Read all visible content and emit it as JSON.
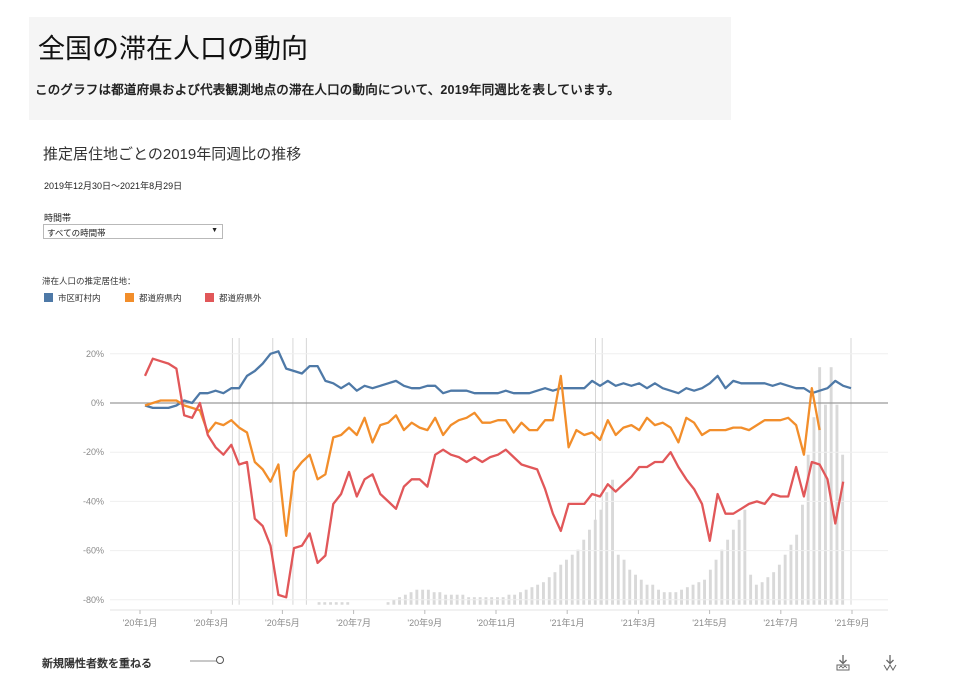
{
  "header": {
    "title": "全国の滞在人口の動向",
    "description": "このグラフは都道府県および代表観測地点の滞在人口の動向について、2019年同週比を表しています。"
  },
  "chart_section": {
    "title": "推定居住地ごとの2019年同週比の推移",
    "date_range": "2019年12月30日～2021年8月29日"
  },
  "filter": {
    "label": "時間帯",
    "selected": "すべての時間帯"
  },
  "legend": {
    "title": "滞在人口の推定居住地：",
    "items": [
      {
        "label": "市区町村内",
        "color": "#4e79a7"
      },
      {
        "label": "都道府県内",
        "color": "#f28e2b"
      },
      {
        "label": "都道府県外",
        "color": "#e15759"
      }
    ]
  },
  "controls": {
    "overlay_label": "新規陽性者数を重ねる",
    "overlay_enabled": true,
    "download_icons": [
      "download-icon",
      "download-icon"
    ]
  },
  "chart_data": {
    "type": "line",
    "x_tick_labels": [
      "'20年1月",
      "'20年3月",
      "'20年5月",
      "'20年7月",
      "'20年9月",
      "'20年11月",
      "'21年1月",
      "'21年3月",
      "'21年5月",
      "'21年7月",
      "'21年9月"
    ],
    "y_tick_labels": [
      "20%",
      "0%",
      "-20%",
      "-40%",
      "-60%",
      "-80%"
    ],
    "ylim": [
      -83,
      24
    ],
    "zero_line": true,
    "series": [
      {
        "name": "市区町村内",
        "color": "#4e79a7",
        "values": [
          -1,
          -2,
          -2,
          -2,
          -1,
          1,
          0,
          4,
          4,
          5,
          4,
          6,
          6,
          11,
          13,
          16,
          20,
          21,
          14,
          13,
          12,
          15,
          15,
          9,
          8,
          6,
          8,
          5,
          7,
          6,
          7,
          8,
          9,
          7,
          6,
          6,
          7,
          7,
          4,
          5,
          5,
          5,
          4,
          4,
          4,
          4,
          5,
          4,
          4,
          4,
          5,
          6,
          5,
          6,
          6,
          6,
          6,
          9,
          7,
          9,
          7,
          8,
          7,
          8,
          6,
          8,
          6,
          5,
          4,
          6,
          5,
          6,
          8,
          11,
          6,
          9,
          8,
          8,
          8,
          8,
          7,
          8,
          7,
          6,
          6,
          4,
          5,
          6,
          9,
          7,
          6
        ]
      },
      {
        "name": "都道府県内",
        "color": "#f28e2b",
        "values": [
          -1,
          0,
          1,
          1,
          1,
          -1,
          -2,
          -3,
          -12,
          -8,
          -9,
          -7,
          -10,
          -12,
          -24,
          -27,
          -32,
          -25,
          -54,
          -28,
          -24,
          -21,
          -31,
          -29,
          -14,
          -13,
          -10,
          -13,
          -6,
          -16,
          -9,
          -8,
          -5,
          -11,
          -8,
          -10,
          -11,
          -6,
          -13,
          -9,
          -7,
          -6,
          -4,
          -8,
          -8,
          -7,
          -7,
          -12,
          -8,
          -11,
          -11,
          -7,
          -7,
          11,
          -18,
          -11,
          -13,
          -12,
          -15,
          -7,
          -13,
          -10,
          -9,
          -11,
          -6,
          -9,
          -8,
          -10,
          -16,
          -6,
          -8,
          -13,
          -11,
          -11,
          -11,
          -10,
          -10,
          -11,
          -9,
          -7,
          -7,
          -7,
          -6,
          -9,
          -21,
          6,
          -11
        ]
      },
      {
        "name": "都道府県外",
        "color": "#e15759",
        "values": [
          11,
          18,
          17,
          16,
          14,
          -5,
          -6,
          0,
          -13,
          -18,
          -21,
          -17,
          -25,
          -24,
          -47,
          -50,
          -58,
          -78,
          -79,
          -59,
          -58,
          -53,
          -65,
          -62,
          -41,
          -37,
          -28,
          -38,
          -31,
          -29,
          -37,
          -40,
          -43,
          -34,
          -31,
          -31,
          -34,
          -21,
          -19,
          -21,
          -22,
          -24,
          -22,
          -24,
          -22,
          -21,
          -19,
          -22,
          -25,
          -26,
          -27,
          -35,
          -45,
          -52,
          -41,
          -41,
          -41,
          -37,
          -38,
          -33,
          -36,
          -33,
          -30,
          -26,
          -26,
          -24,
          -24,
          -20,
          -26,
          -31,
          -35,
          -41,
          -56,
          -37,
          -45,
          -45,
          -43,
          -41,
          -40,
          -41,
          -37,
          -38,
          -38,
          -26,
          -38,
          -24,
          -25,
          -31,
          -49,
          -32
        ]
      }
    ],
    "case_bars": [
      0,
      0,
      0,
      0,
      0,
      0,
      0,
      0,
      0,
      0,
      0,
      0,
      0,
      0,
      1,
      1,
      1,
      1,
      1,
      1,
      0,
      0,
      0,
      0,
      0,
      0,
      1,
      2,
      3,
      4,
      5,
      6,
      6,
      6,
      5,
      5,
      4,
      4,
      4,
      4,
      3,
      3,
      3,
      3,
      3,
      3,
      3,
      4,
      4,
      5,
      6,
      7,
      8,
      9,
      11,
      13,
      16,
      18,
      20,
      22,
      26,
      30,
      34,
      38,
      45,
      50,
      20,
      18,
      14,
      12,
      10,
      8,
      8,
      6,
      5,
      5,
      5,
      6,
      7,
      8,
      9,
      10,
      14,
      18,
      22,
      26,
      30,
      34,
      38,
      12,
      8,
      9,
      11,
      13,
      16,
      20,
      24,
      28,
      40,
      60,
      75,
      95,
      80,
      95,
      80,
      60
    ],
    "highlight_weeks": [
      13,
      14,
      19,
      22,
      24,
      67,
      68,
      105
    ]
  }
}
